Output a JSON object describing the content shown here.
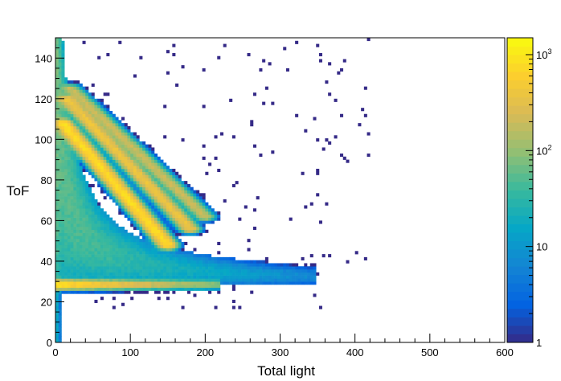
{
  "chart_data": {
    "type": "heatmap",
    "title": "",
    "xlabel": "Total light",
    "ylabel": "ToF",
    "xlim": [
      0,
      600
    ],
    "ylim": [
      0,
      150
    ],
    "x_ticks": [
      0,
      100,
      200,
      300,
      400,
      500,
      600
    ],
    "y_ticks": [
      0,
      20,
      40,
      60,
      80,
      100,
      120,
      140
    ],
    "x_tick_labels": [
      "0",
      "100",
      "200",
      "300",
      "400",
      "500",
      "600"
    ],
    "y_tick_labels": [
      "0",
      "20",
      "40",
      "60",
      "80",
      "100",
      "120",
      "140"
    ],
    "colorbar": {
      "scale": "log",
      "range": [
        1,
        1500
      ],
      "labels": [
        {
          "value": 1,
          "base": "1",
          "exp": ""
        },
        {
          "value": 10,
          "base": "10",
          "exp": ""
        },
        {
          "value": 100,
          "base": "10",
          "exp": "2"
        },
        {
          "value": 1000,
          "base": "10",
          "exp": "3"
        }
      ],
      "palette": [
        "#352a87",
        "#0363e1",
        "#1485d4",
        "#06a7c6",
        "#38b99e",
        "#92bf73",
        "#d9ba56",
        "#fcce2e",
        "#f9fb0e"
      ]
    },
    "features": {
      "gamma_line": {
        "tof": 28.5,
        "light_range": [
          0,
          200
        ],
        "peak_counts": 1000
      },
      "hyperbolic_band": {
        "tof_light_product": 2600,
        "tof_offset": 29,
        "light_max": 350
      },
      "ridges": [
        {
          "name": "ridge-1",
          "from": [
            10,
            108
          ],
          "to": [
            150,
            48
          ],
          "peak_counts": 800
        },
        {
          "name": "ridge-2",
          "from": [
            15,
            120
          ],
          "to": [
            180,
            56
          ],
          "peak_counts": 400
        },
        {
          "name": "ridge-3",
          "from": [
            20,
            125
          ],
          "to": [
            200,
            62
          ],
          "peak_counts": 200
        }
      ],
      "low_light_column": {
        "light_range": [
          0,
          10
        ],
        "tof_range": [
          0,
          150
        ]
      }
    }
  }
}
